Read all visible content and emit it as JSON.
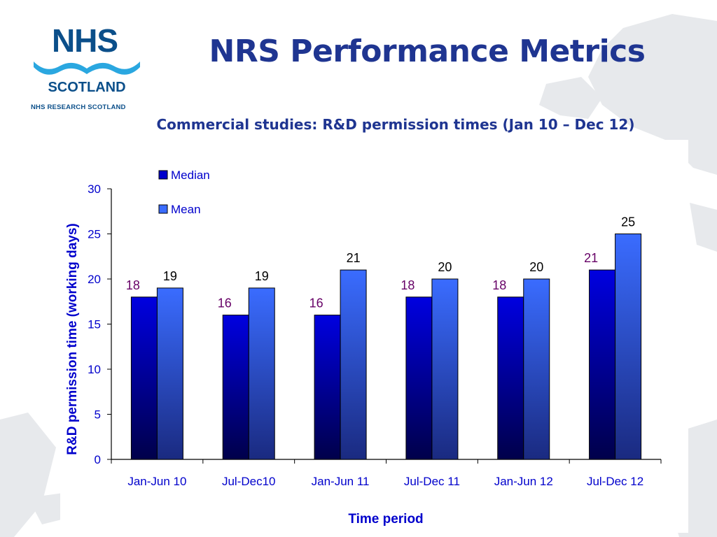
{
  "logo": {
    "mark": "NHS",
    "name": "SCOTLAND",
    "subtitle": "NHS RESEARCH SCOTLAND"
  },
  "slide": {
    "title": "NRS Performance Metrics",
    "subtitle": "Commercial studies: R&D permission times (Jan 10 – Dec 12)"
  },
  "colors": {
    "title": "#1f3591",
    "logo": "#0b4f8a",
    "logo_wave": "#2aa7e0",
    "median_label": "#660066",
    "axis_text": "#0000cc"
  },
  "chart_data": {
    "type": "bar",
    "title": "",
    "xlabel": "Time period",
    "ylabel": "R&D permission time (working days)",
    "ylim": [
      0,
      30
    ],
    "yticks": [
      0,
      5,
      10,
      15,
      20,
      25,
      30
    ],
    "categories": [
      "Jan-Jun 10",
      "Jul-Dec10",
      "Jan-Jun 11",
      "Jul-Dec 11",
      "Jan-Jun 12",
      "Jul-Dec 12"
    ],
    "series": [
      {
        "name": "Median",
        "values": [
          18,
          16,
          16,
          18,
          18,
          21
        ],
        "color": "#0000cc",
        "label_color": "#660066"
      },
      {
        "name": "Mean",
        "values": [
          19,
          19,
          21,
          20,
          20,
          25
        ],
        "color": "#3366ff",
        "label_color": "#000000"
      }
    ],
    "legend": "top-left",
    "grid": false
  }
}
